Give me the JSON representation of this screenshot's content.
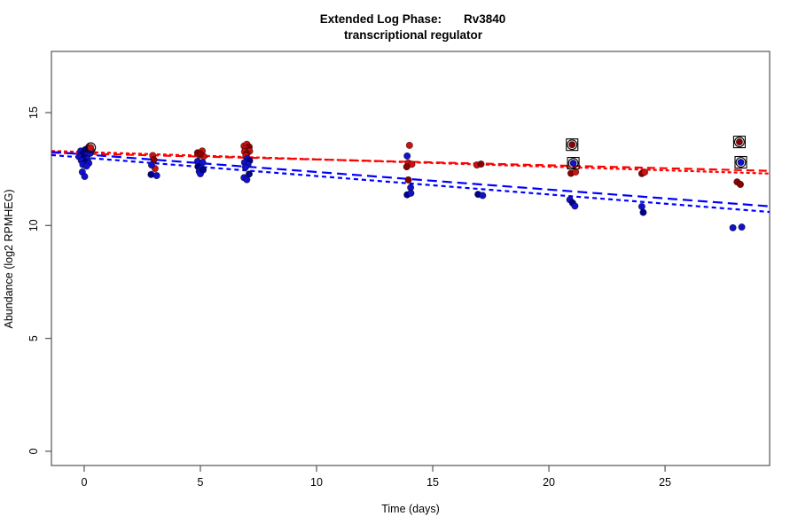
{
  "title": {
    "part1": "Extended Log Phase:",
    "gene": "Rv3840",
    "line2": "transcriptional regulator"
  },
  "axes": {
    "x": {
      "label": "Time  (days)",
      "ticks": [
        0,
        5,
        10,
        15,
        20,
        25
      ],
      "lim": [
        -1.41,
        29.5
      ]
    },
    "y": {
      "label": "Abundance  (log2 RPMHEG)",
      "ticks": [
        0,
        5,
        10,
        15
      ],
      "lim": [
        -0.63,
        17.71
      ]
    }
  },
  "palette": {
    "R": "#cc1111",
    "D": "#8b0000",
    "B": "#1111cc",
    "N": "#00008b",
    "line_red": "#ff0000",
    "line_blue": "#0000ff",
    "marker_outline": "#000000",
    "box": "#555555"
  },
  "chart_data": {
    "type": "scatter",
    "title": "Extended Log Phase: Rv3840 transcriptional regulator",
    "xlabel": "Time (days)",
    "ylabel": "Abundance (log2 RPMHEG)",
    "xlim": [
      -1.41,
      29.5
    ],
    "ylim": [
      -0.63,
      17.71
    ],
    "grid": false,
    "series": [
      {
        "name": "red-condition",
        "points": [
          [
            0.2,
            13.45,
            "R"
          ],
          [
            0.32,
            13.3,
            "R"
          ],
          [
            0.1,
            13.38,
            "D"
          ],
          [
            0.06,
            12.94,
            "R"
          ],
          [
            2.95,
            13.1,
            "R"
          ],
          [
            3.0,
            12.91,
            "D"
          ],
          [
            3.05,
            12.52,
            "R"
          ],
          [
            4.88,
            13.22,
            "D"
          ],
          [
            5.08,
            13.3,
            "R"
          ],
          [
            4.95,
            13.12,
            "R"
          ],
          [
            5.14,
            13.06,
            "R"
          ],
          [
            5.0,
            13.17,
            "D"
          ],
          [
            6.88,
            13.52,
            "R"
          ],
          [
            7.0,
            13.6,
            "R"
          ],
          [
            7.1,
            13.48,
            "D"
          ],
          [
            6.94,
            13.4,
            "R"
          ],
          [
            7.06,
            13.33,
            "D"
          ],
          [
            6.9,
            13.27,
            "R"
          ],
          [
            7.12,
            13.29,
            "R"
          ],
          [
            7.0,
            13.18,
            "D"
          ],
          [
            6.96,
            13.08,
            "R"
          ],
          [
            14.0,
            13.55,
            "R"
          ],
          [
            13.95,
            12.77,
            "R"
          ],
          [
            14.1,
            12.71,
            "R"
          ],
          [
            13.88,
            12.6,
            "D"
          ],
          [
            13.95,
            12.02,
            "D"
          ],
          [
            16.9,
            12.68,
            "R"
          ],
          [
            17.08,
            12.72,
            "D"
          ],
          [
            20.95,
            12.31,
            "D"
          ],
          [
            21.15,
            12.37,
            "R"
          ],
          [
            24.0,
            12.3,
            "D"
          ],
          [
            24.12,
            12.36,
            "R"
          ],
          [
            28.1,
            11.93,
            "D"
          ],
          [
            28.24,
            11.82,
            "D"
          ]
        ]
      },
      {
        "name": "blue-condition",
        "points": [
          [
            -0.15,
            13.3,
            "B"
          ],
          [
            0.05,
            13.36,
            "N"
          ],
          [
            0.22,
            13.28,
            "B"
          ],
          [
            -0.05,
            13.18,
            "N"
          ],
          [
            0.12,
            13.12,
            "B"
          ],
          [
            0.26,
            13.2,
            "B"
          ],
          [
            -0.22,
            13.04,
            "B"
          ],
          [
            0.0,
            12.99,
            "N"
          ],
          [
            0.15,
            12.94,
            "B"
          ],
          [
            -0.12,
            12.87,
            "B"
          ],
          [
            0.05,
            12.8,
            "N"
          ],
          [
            0.2,
            12.76,
            "B"
          ],
          [
            -0.06,
            12.7,
            "B"
          ],
          [
            0.1,
            12.63,
            "B"
          ],
          [
            -0.08,
            12.37,
            "B"
          ],
          [
            0.02,
            12.17,
            "B"
          ],
          [
            2.9,
            12.68,
            "B"
          ],
          [
            2.88,
            12.26,
            "N"
          ],
          [
            3.12,
            12.21,
            "B"
          ],
          [
            4.88,
            12.84,
            "B"
          ],
          [
            5.1,
            12.79,
            "B"
          ],
          [
            4.9,
            12.61,
            "N"
          ],
          [
            5.05,
            12.52,
            "B"
          ],
          [
            4.95,
            12.4,
            "B"
          ],
          [
            5.0,
            12.29,
            "B"
          ],
          [
            5.12,
            12.46,
            "N"
          ],
          [
            7.02,
            12.96,
            "B"
          ],
          [
            7.12,
            12.87,
            "N"
          ],
          [
            6.9,
            12.79,
            "B"
          ],
          [
            7.05,
            12.7,
            "B"
          ],
          [
            6.94,
            12.58,
            "B"
          ],
          [
            7.1,
            12.28,
            "N"
          ],
          [
            6.88,
            12.12,
            "B"
          ],
          [
            7.0,
            12.03,
            "B"
          ],
          [
            13.9,
            13.08,
            "B"
          ],
          [
            14.05,
            11.68,
            "B"
          ],
          [
            13.9,
            11.36,
            "N"
          ],
          [
            14.06,
            11.43,
            "B"
          ],
          [
            16.95,
            11.38,
            "N"
          ],
          [
            17.15,
            11.33,
            "B"
          ],
          [
            20.9,
            11.14,
            "B"
          ],
          [
            21.02,
            11.0,
            "N"
          ],
          [
            21.12,
            10.86,
            "B"
          ],
          [
            24.0,
            10.84,
            "B"
          ],
          [
            24.06,
            10.58,
            "N"
          ],
          [
            27.92,
            9.9,
            "B"
          ],
          [
            28.3,
            9.93,
            "B"
          ]
        ]
      }
    ],
    "trend_lines": [
      {
        "name": "red-fit-1",
        "color_key": "line_red",
        "x": [
          -1.41,
          29.5
        ],
        "y": [
          13.22,
          12.42
        ],
        "dash": "9,5"
      },
      {
        "name": "red-fit-2",
        "color_key": "line_red",
        "x": [
          -1.41,
          29.5
        ],
        "y": [
          13.3,
          12.3
        ],
        "dash": "4,3"
      },
      {
        "name": "blue-fit-1",
        "color_key": "line_blue",
        "x": [
          -1.41,
          29.5
        ],
        "y": [
          13.26,
          10.85
        ],
        "dash": "11,6"
      },
      {
        "name": "blue-fit-2",
        "color_key": "line_blue",
        "x": [
          -1.41,
          29.5
        ],
        "y": [
          13.12,
          10.6
        ],
        "dash": "5,4"
      }
    ],
    "marked_points": [
      {
        "day": 21.0,
        "value": 13.58,
        "fill": "D",
        "square": true,
        "circle": true
      },
      {
        "day": 21.05,
        "value": 12.76,
        "fill": "B",
        "square": true,
        "circle": true
      },
      {
        "day": 28.2,
        "value": 13.7,
        "fill": "D",
        "square": true,
        "circle": true
      },
      {
        "day": 28.26,
        "value": 12.8,
        "fill": "B",
        "square": true,
        "circle": true
      },
      {
        "day": 0.28,
        "value": 13.45,
        "fill": "R",
        "square": false,
        "circle": true
      }
    ]
  }
}
